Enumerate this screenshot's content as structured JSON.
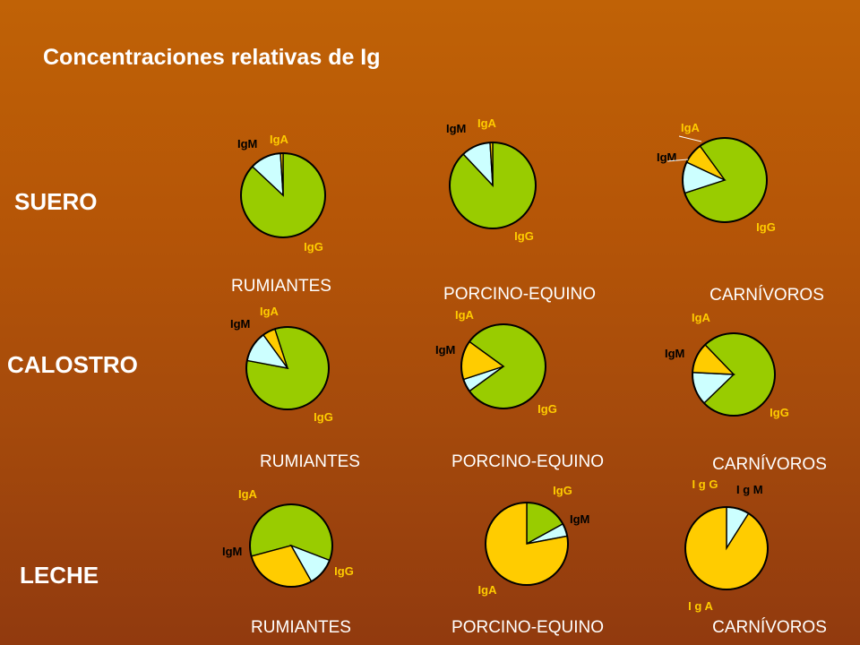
{
  "title": "Concentraciones relativas de Ig",
  "rows": [
    {
      "label": "SUERO"
    },
    {
      "label": "CALOSTRO"
    },
    {
      "label": "LECHE"
    }
  ],
  "groups": [
    "RUMIANTES",
    "PORCINO-EQUINO",
    "CARNÍVOROS"
  ],
  "colors": {
    "IgG": "#99cc00",
    "IgM": "#ccffff",
    "IgA": "#ffcc00",
    "outline": "#000000"
  },
  "label_colors": {
    "IgG": "#ffcc00",
    "IgM": "#000000",
    "IgA": "#ffcc00"
  },
  "chart_data": [
    {
      "type": "pie",
      "row": "SUERO",
      "group": "RUMIANTES",
      "labels": [
        "IgG",
        "IgM",
        "IgA"
      ],
      "display_labels": [
        "IgG",
        "IgM",
        "IgA"
      ],
      "values": [
        87,
        12,
        1
      ]
    },
    {
      "type": "pie",
      "row": "SUERO",
      "group": "PORCINO-EQUINO",
      "labels": [
        "IgG",
        "IgM",
        "IgA"
      ],
      "display_labels": [
        "IgG",
        "IgM",
        "IgA"
      ],
      "values": [
        88,
        11,
        1
      ]
    },
    {
      "type": "pie",
      "row": "SUERO",
      "group": "CARNÍVOROS",
      "labels": [
        "IgG",
        "IgM",
        "IgA"
      ],
      "display_labels": [
        "IgG",
        "IgM",
        "IgA"
      ],
      "values": [
        80,
        12,
        8
      ]
    },
    {
      "type": "pie",
      "row": "CALOSTRO",
      "group": "RUMIANTES",
      "labels": [
        "IgG",
        "IgM",
        "IgA"
      ],
      "display_labels": [
        "IgG",
        "IgM",
        "IgA"
      ],
      "values": [
        83,
        12,
        5
      ]
    },
    {
      "type": "pie",
      "row": "CALOSTRO",
      "group": "PORCINO-EQUINO",
      "labels": [
        "IgG",
        "IgM",
        "IgA"
      ],
      "display_labels": [
        "IgG",
        "IgM",
        "IgA"
      ],
      "values": [
        80,
        5,
        15
      ]
    },
    {
      "type": "pie",
      "row": "CALOSTRO",
      "group": "CARNÍVOROS",
      "labels": [
        "IgG",
        "IgM",
        "IgA"
      ],
      "display_labels": [
        "IgG",
        "IgM",
        "IgA"
      ],
      "values": [
        75,
        13,
        12
      ]
    },
    {
      "type": "pie",
      "row": "LECHE",
      "group": "RUMIANTES",
      "labels": [
        "IgG",
        "IgM",
        "IgA"
      ],
      "display_labels": [
        "IgG",
        "IgM",
        "IgA"
      ],
      "values": [
        60,
        11,
        29
      ]
    },
    {
      "type": "pie",
      "row": "LECHE",
      "group": "PORCINO-EQUINO",
      "labels": [
        "IgG",
        "IgM",
        "IgA"
      ],
      "display_labels": [
        "IgG",
        "IgM",
        "IgA"
      ],
      "values": [
        17,
        5,
        78
      ]
    },
    {
      "type": "pie",
      "row": "LECHE",
      "group": "CARNÍVOROS",
      "labels": [
        "IgG",
        "IgM",
        "IgA"
      ],
      "display_labels": [
        "I g G",
        "I g M",
        "I g A"
      ],
      "values": [
        0,
        9,
        91
      ]
    }
  ]
}
